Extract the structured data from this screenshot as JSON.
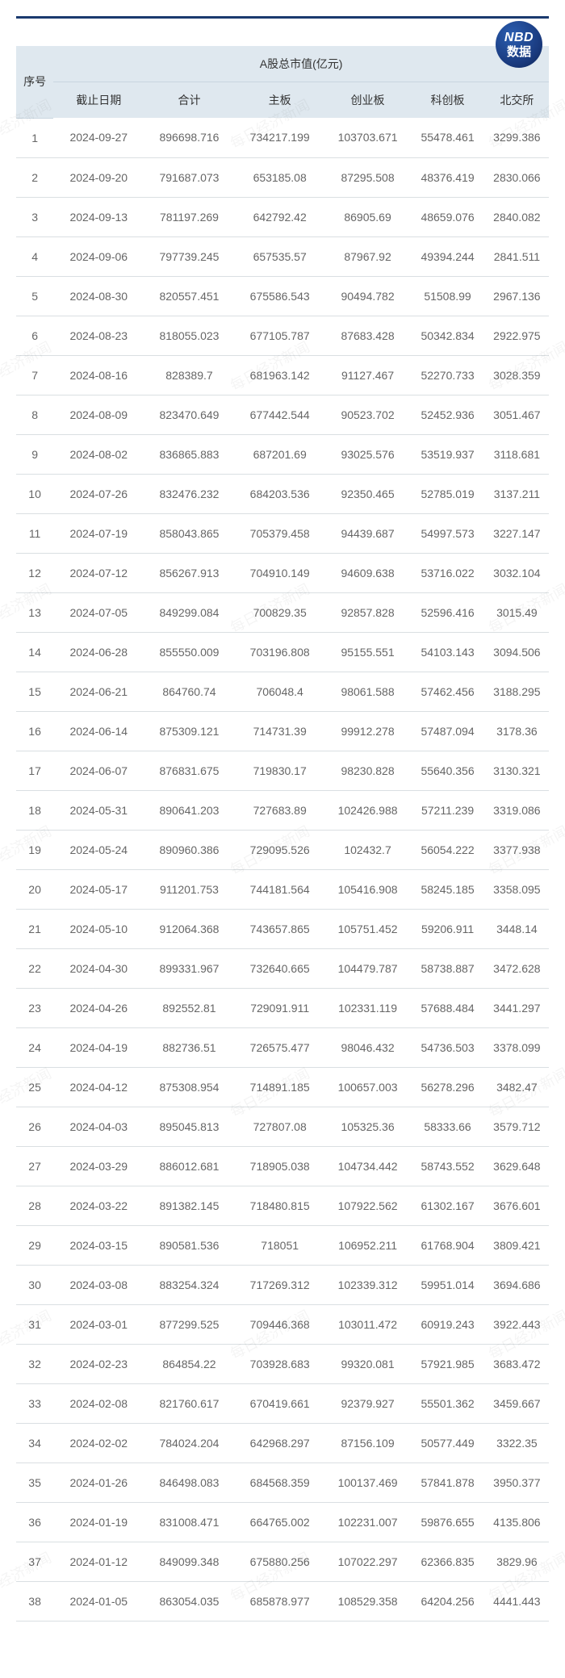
{
  "logo": {
    "nbd": "NBD",
    "zh": "数据"
  },
  "watermark_text": "每日经济新闻",
  "table": {
    "header": {
      "idx": "序号",
      "group": "A股总市值(亿元)",
      "sub": [
        "截止日期",
        "合计",
        "主板",
        "创业板",
        "科创板",
        "北交所"
      ]
    },
    "colors": {
      "header_bg": "#dfe8ef",
      "row_border": "#dadfe2",
      "topbar": "#1a3a6e",
      "text": "#666666"
    },
    "col_widths_pct": [
      7,
      17,
      17,
      17,
      16,
      14,
      12
    ],
    "rows": [
      [
        1,
        "2024-09-27",
        "896698.716",
        "734217.199",
        "103703.671",
        "55478.461",
        "3299.386"
      ],
      [
        2,
        "2024-09-20",
        "791687.073",
        "653185.08",
        "87295.508",
        "48376.419",
        "2830.066"
      ],
      [
        3,
        "2024-09-13",
        "781197.269",
        "642792.42",
        "86905.69",
        "48659.076",
        "2840.082"
      ],
      [
        4,
        "2024-09-06",
        "797739.245",
        "657535.57",
        "87967.92",
        "49394.244",
        "2841.511"
      ],
      [
        5,
        "2024-08-30",
        "820557.451",
        "675586.543",
        "90494.782",
        "51508.99",
        "2967.136"
      ],
      [
        6,
        "2024-08-23",
        "818055.023",
        "677105.787",
        "87683.428",
        "50342.834",
        "2922.975"
      ],
      [
        7,
        "2024-08-16",
        "828389.7",
        "681963.142",
        "91127.467",
        "52270.733",
        "3028.359"
      ],
      [
        8,
        "2024-08-09",
        "823470.649",
        "677442.544",
        "90523.702",
        "52452.936",
        "3051.467"
      ],
      [
        9,
        "2024-08-02",
        "836865.883",
        "687201.69",
        "93025.576",
        "53519.937",
        "3118.681"
      ],
      [
        10,
        "2024-07-26",
        "832476.232",
        "684203.536",
        "92350.465",
        "52785.019",
        "3137.211"
      ],
      [
        11,
        "2024-07-19",
        "858043.865",
        "705379.458",
        "94439.687",
        "54997.573",
        "3227.147"
      ],
      [
        12,
        "2024-07-12",
        "856267.913",
        "704910.149",
        "94609.638",
        "53716.022",
        "3032.104"
      ],
      [
        13,
        "2024-07-05",
        "849299.084",
        "700829.35",
        "92857.828",
        "52596.416",
        "3015.49"
      ],
      [
        14,
        "2024-06-28",
        "855550.009",
        "703196.808",
        "95155.551",
        "54103.143",
        "3094.506"
      ],
      [
        15,
        "2024-06-21",
        "864760.74",
        "706048.4",
        "98061.588",
        "57462.456",
        "3188.295"
      ],
      [
        16,
        "2024-06-14",
        "875309.121",
        "714731.39",
        "99912.278",
        "57487.094",
        "3178.36"
      ],
      [
        17,
        "2024-06-07",
        "876831.675",
        "719830.17",
        "98230.828",
        "55640.356",
        "3130.321"
      ],
      [
        18,
        "2024-05-31",
        "890641.203",
        "727683.89",
        "102426.988",
        "57211.239",
        "3319.086"
      ],
      [
        19,
        "2024-05-24",
        "890960.386",
        "729095.526",
        "102432.7",
        "56054.222",
        "3377.938"
      ],
      [
        20,
        "2024-05-17",
        "911201.753",
        "744181.564",
        "105416.908",
        "58245.185",
        "3358.095"
      ],
      [
        21,
        "2024-05-10",
        "912064.368",
        "743657.865",
        "105751.452",
        "59206.911",
        "3448.14"
      ],
      [
        22,
        "2024-04-30",
        "899331.967",
        "732640.665",
        "104479.787",
        "58738.887",
        "3472.628"
      ],
      [
        23,
        "2024-04-26",
        "892552.81",
        "729091.911",
        "102331.119",
        "57688.484",
        "3441.297"
      ],
      [
        24,
        "2024-04-19",
        "882736.51",
        "726575.477",
        "98046.432",
        "54736.503",
        "3378.099"
      ],
      [
        25,
        "2024-04-12",
        "875308.954",
        "714891.185",
        "100657.003",
        "56278.296",
        "3482.47"
      ],
      [
        26,
        "2024-04-03",
        "895045.813",
        "727807.08",
        "105325.36",
        "58333.66",
        "3579.712"
      ],
      [
        27,
        "2024-03-29",
        "886012.681",
        "718905.038",
        "104734.442",
        "58743.552",
        "3629.648"
      ],
      [
        28,
        "2024-03-22",
        "891382.145",
        "718480.815",
        "107922.562",
        "61302.167",
        "3676.601"
      ],
      [
        29,
        "2024-03-15",
        "890581.536",
        "718051",
        "106952.211",
        "61768.904",
        "3809.421"
      ],
      [
        30,
        "2024-03-08",
        "883254.324",
        "717269.312",
        "102339.312",
        "59951.014",
        "3694.686"
      ],
      [
        31,
        "2024-03-01",
        "877299.525",
        "709446.368",
        "103011.472",
        "60919.243",
        "3922.443"
      ],
      [
        32,
        "2024-02-23",
        "864854.22",
        "703928.683",
        "99320.081",
        "57921.985",
        "3683.472"
      ],
      [
        33,
        "2024-02-08",
        "821760.617",
        "670419.661",
        "92379.927",
        "55501.362",
        "3459.667"
      ],
      [
        34,
        "2024-02-02",
        "784024.204",
        "642968.297",
        "87156.109",
        "50577.449",
        "3322.35"
      ],
      [
        35,
        "2024-01-26",
        "846498.083",
        "684568.359",
        "100137.469",
        "57841.878",
        "3950.377"
      ],
      [
        36,
        "2024-01-19",
        "831008.471",
        "664765.002",
        "102231.007",
        "59876.655",
        "4135.806"
      ],
      [
        37,
        "2024-01-12",
        "849099.348",
        "675880.256",
        "107022.297",
        "62366.835",
        "3829.96"
      ],
      [
        38,
        "2024-01-05",
        "863054.035",
        "685878.977",
        "108529.358",
        "64204.256",
        "4441.443"
      ]
    ]
  }
}
